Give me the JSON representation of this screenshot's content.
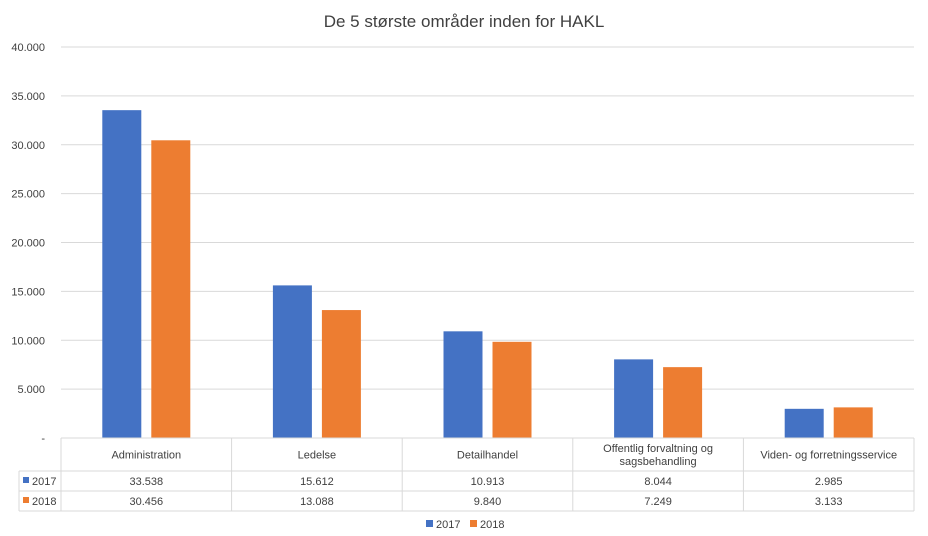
{
  "chart_data": {
    "type": "bar",
    "title": "De 5 største områder inden for HAKL",
    "categories": [
      [
        "Administration"
      ],
      [
        "Ledelse"
      ],
      [
        "Detailhandel"
      ],
      [
        "Offentlig forvaltning og",
        "sagsbehandling"
      ],
      [
        "Viden- og forretningsservice"
      ]
    ],
    "series": [
      {
        "name": "2017",
        "color": "#4472c4",
        "values": [
          33538,
          15612,
          10913,
          8044,
          2985
        ],
        "labels": [
          "33.538",
          "15.612",
          "10.913",
          "8.044",
          "2.985"
        ]
      },
      {
        "name": "2018",
        "color": "#ed7d31",
        "values": [
          30456,
          13088,
          9840,
          7249,
          3133
        ],
        "labels": [
          "30.456",
          "13.088",
          "9.840",
          "7.249",
          "3.133"
        ]
      }
    ],
    "yticks": [
      {
        "value": 0,
        "label": "-"
      },
      {
        "value": 5000,
        "label": "5.000"
      },
      {
        "value": 10000,
        "label": "10.000"
      },
      {
        "value": 15000,
        "label": "15.000"
      },
      {
        "value": 20000,
        "label": "20.000"
      },
      {
        "value": 25000,
        "label": "25.000"
      },
      {
        "value": 30000,
        "label": "30.000"
      },
      {
        "value": 35000,
        "label": "35.000"
      },
      {
        "value": 40000,
        "label": "40.000"
      }
    ],
    "ylim": [
      0,
      40000
    ],
    "grid": true,
    "legend": "bottom",
    "data_table": true
  }
}
